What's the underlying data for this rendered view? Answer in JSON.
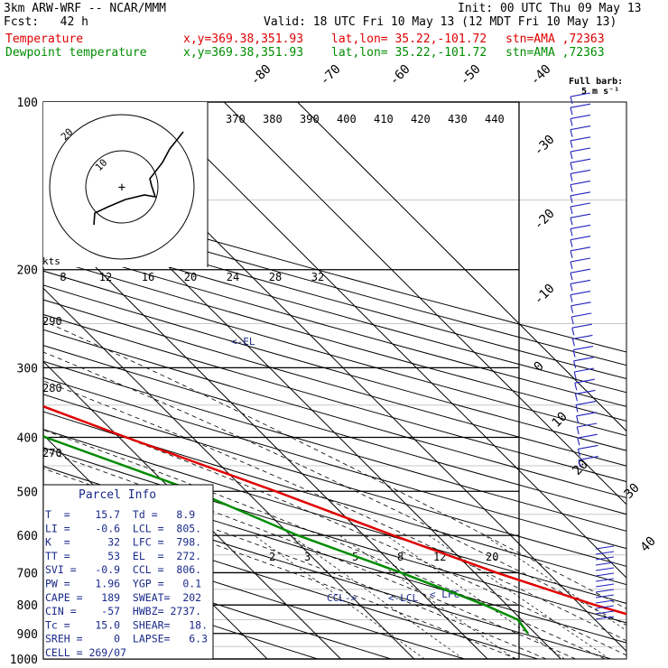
{
  "header": {
    "model": "3km ARW-WRF -- NCAR/MMM",
    "init": "Init: 00 UTC Thu 09 May 13",
    "fcst": "Fcst:   42 h",
    "valid": "Valid: 18 UTC Fri 10 May 13 (12 MDT Fri 10 May 13)",
    "temp_line": {
      "label": "Temperature",
      "xy": "x,y=369.38,351.93",
      "latlon": "lat,lon= 35.22,-101.72",
      "stn": "stn=AMA ,72363"
    },
    "dew_line": {
      "label": "Dewpoint temperature",
      "xy": "x,y=369.38,351.93",
      "latlon": "lat,lon= 35.22,-101.72",
      "stn": "stn=AMA ,72363"
    }
  },
  "barb_key": {
    "line1": "Full barb:",
    "line2": "5 m s⁻¹"
  },
  "colors": {
    "temperature": "#e00000",
    "dewpoint": "#008c00",
    "grid": "#000000",
    "wind": "#2020c0",
    "text_blue": "#1a2a8a"
  },
  "chart_data": {
    "type": "skew-t",
    "pressure_levels": [
      100,
      200,
      300,
      400,
      500,
      600,
      700,
      800,
      900,
      1000
    ],
    "isotherm_labels": [
      -80,
      -70,
      -60,
      -50,
      -40,
      -30,
      -20,
      -10,
      0,
      10,
      20,
      30,
      40
    ],
    "theta_e_labels": [
      370,
      380,
      390,
      400,
      410,
      420,
      430,
      440
    ],
    "mixing_ratio_labels": [
      2,
      3,
      5,
      8,
      12,
      20
    ],
    "hodo_speed_labels": [
      8,
      12,
      16,
      20,
      24,
      28,
      32
    ],
    "hodo_speed_unit": "kts",
    "hodo_ring_labels": [
      "20",
      "10"
    ],
    "lower_theta_labels": [
      290,
      280,
      270
    ],
    "markers": [
      {
        "label": "<-EL"
      },
      {
        "label": "CCL->"
      },
      {
        "label": "<-LCL"
      },
      {
        "label": "< LFC"
      }
    ],
    "temperature": [
      {
        "p": 900,
        "t": 33
      },
      {
        "p": 850,
        "t": 27
      },
      {
        "p": 800,
        "t": 22
      },
      {
        "p": 700,
        "t": 13
      },
      {
        "p": 600,
        "t": 4
      },
      {
        "p": 500,
        "t": -6
      },
      {
        "p": 400,
        "t": -19
      },
      {
        "p": 300,
        "t": -35
      },
      {
        "p": 250,
        "t": -47
      },
      {
        "p": 200,
        "t": -55
      },
      {
        "p": 150,
        "t": -58
      },
      {
        "p": 100,
        "t": -62
      }
    ],
    "dewpoint": [
      {
        "p": 900,
        "t": 9
      },
      {
        "p": 850,
        "t": 9.5
      },
      {
        "p": 800,
        "t": 7
      },
      {
        "p": 700,
        "t": 0
      },
      {
        "p": 600,
        "t": -9
      },
      {
        "p": 500,
        "t": -17
      },
      {
        "p": 400,
        "t": -30
      },
      {
        "p": 300,
        "t": -44
      },
      {
        "p": 250,
        "t": -60
      },
      {
        "p": 200,
        "t": -75
      },
      {
        "p": 150,
        "t": -80
      },
      {
        "p": 100,
        "t": -85
      }
    ]
  },
  "parcel": {
    "title": "Parcel Info",
    "rows": [
      "T  =    15.7  Td =   8.9",
      "LI =    -0.6  LCL =  805.",
      "K  =      32  LFC =  798.",
      "TT =      53  EL  =  272.",
      "SVI =   -0.9  CCL =  806.",
      "PW =    1.96  YGP =   0.1",
      "CAPE =   189  SWEAT=  202",
      "CIN =    -57  HWBZ= 2737.",
      "Tc =    15.0  SHEAR=   18.",
      "SREH =     0  LAPSE=   6.3",
      "CELL = 269/07"
    ]
  }
}
